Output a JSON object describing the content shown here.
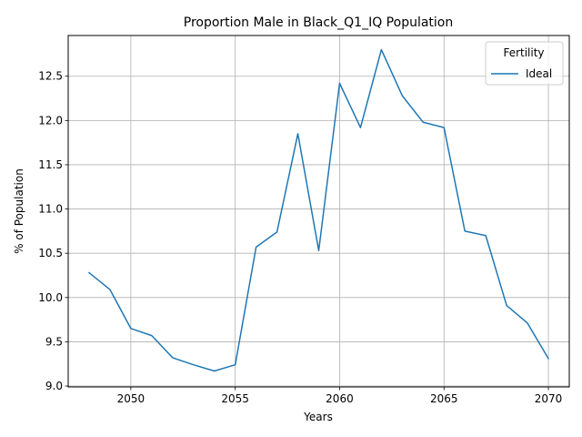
{
  "chart_data": {
    "type": "line",
    "title": "Proportion Male in Black_Q1_IQ Population",
    "xlabel": "Years",
    "ylabel": "% of Population",
    "xlim": [
      2047,
      2071
    ],
    "ylim": [
      8.99,
      12.96
    ],
    "xticks": [
      "2050",
      "2055",
      "2060",
      "2065",
      "2070"
    ],
    "yticks": [
      "9.0",
      "9.5",
      "10.0",
      "10.5",
      "11.0",
      "11.5",
      "12.0",
      "12.5"
    ],
    "grid": true,
    "legend": {
      "title": "Fertility",
      "placement": "top-right"
    },
    "series": [
      {
        "name": "Ideal",
        "color": "#1f77b4",
        "x": [
          2048,
          2049,
          2050,
          2051,
          2052,
          2053,
          2054,
          2055,
          2056,
          2057,
          2058,
          2059,
          2060,
          2061,
          2062,
          2063,
          2064,
          2065,
          2066,
          2067,
          2068,
          2069,
          2070
        ],
        "values": [
          10.28,
          10.09,
          9.65,
          9.57,
          9.32,
          9.24,
          9.17,
          9.24,
          10.57,
          10.74,
          11.85,
          10.53,
          12.42,
          11.92,
          12.8,
          12.28,
          11.98,
          11.92,
          10.75,
          10.7,
          9.91,
          9.71,
          9.31
        ]
      }
    ]
  }
}
